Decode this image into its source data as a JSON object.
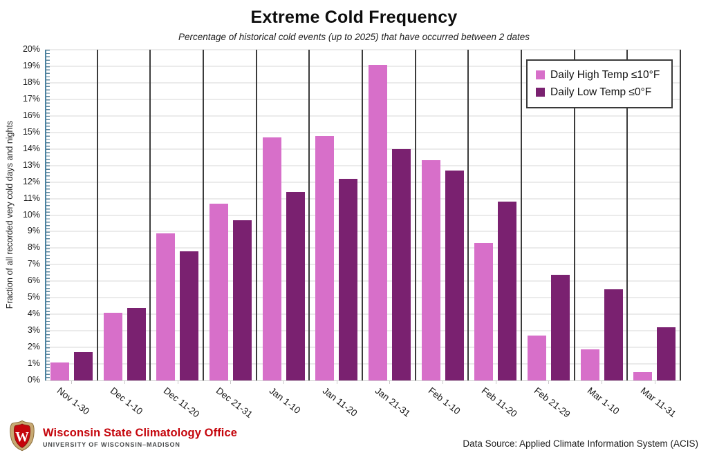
{
  "title": "Extreme Cold Frequency",
  "subtitle": "Percentage of historical cold events (up to 2025) that have occurred between 2 dates",
  "y_axis": {
    "label": "Fraction of all recorded very cold days and nights",
    "tick_labels": [
      "0%",
      "1%",
      "2%",
      "3%",
      "4%",
      "5%",
      "6%",
      "7%",
      "8%",
      "9%",
      "10%",
      "11%",
      "12%",
      "13%",
      "14%",
      "15%",
      "16%",
      "17%",
      "18%",
      "19%",
      "20%"
    ]
  },
  "legend": {
    "items": [
      {
        "label": "Daily High Temp ≤10°F",
        "color": "#d76fc9"
      },
      {
        "label": "Daily Low Temp ≤0°F",
        "color": "#7a2170"
      }
    ]
  },
  "chart_data": {
    "type": "bar",
    "title": "Extreme Cold Frequency",
    "subtitle": "Percentage of historical cold events (up to 2025) that have occurred between 2 dates",
    "xlabel": "",
    "ylabel": "Fraction of all recorded very cold days and nights",
    "ylim": [
      0,
      20
    ],
    "y_tick_step": 1,
    "grid": true,
    "legend_position": "top-right",
    "categories": [
      "Nov 1-30",
      "Dec 1-10",
      "Dec 11-20",
      "Dec 21-31",
      "Jan 1-10",
      "Jan 11-20",
      "Jan 21-31",
      "Feb 1-10",
      "Feb 11-20",
      "Feb 21-29",
      "Mar 1-10",
      "Mar 11-31"
    ],
    "series": [
      {
        "name": "Daily High Temp ≤10°F",
        "color": "#d76fc9",
        "values": [
          1.1,
          4.1,
          8.9,
          10.7,
          14.7,
          14.8,
          19.1,
          13.3,
          8.3,
          2.7,
          1.9,
          0.5
        ]
      },
      {
        "name": "Daily Low Temp ≤0°F",
        "color": "#7a2170",
        "values": [
          1.7,
          4.4,
          7.8,
          9.7,
          11.4,
          12.2,
          14.0,
          12.7,
          10.8,
          6.4,
          5.5,
          3.2
        ]
      }
    ]
  },
  "footer": {
    "org_name": "Wisconsin State Climatology Office",
    "org_subname": "UNIVERSITY OF WISCONSIN–MADISON",
    "data_source": "Data Source: Applied Climate Information System (ACIS)"
  },
  "colors": {
    "accent_red": "#c5050c",
    "axis_teal": "#4a82a0",
    "separator": "#3b3b3b",
    "gridline": "#ebebeb",
    "series_high": "#d76fc9",
    "series_low": "#7a2170"
  }
}
